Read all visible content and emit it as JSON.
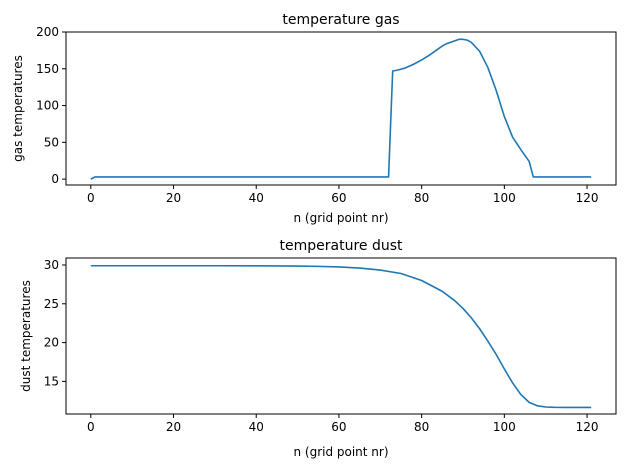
{
  "chart_data": [
    {
      "type": "line",
      "title": "temperature gas",
      "xlabel": "n (grid point nr)",
      "ylabel": "gas temperatures",
      "xlim": [
        -6,
        127
      ],
      "ylim": [
        -8,
        200
      ],
      "xticks": [
        0,
        20,
        40,
        60,
        80,
        100,
        120
      ],
      "yticks": [
        0,
        50,
        100,
        150,
        200
      ],
      "grid": false,
      "color": "#1f77b4",
      "series": [
        {
          "x": [
            0,
            1,
            2,
            10,
            20,
            40,
            60,
            70,
            72,
            73,
            74,
            76,
            78,
            80,
            82,
            84,
            85,
            86,
            88,
            89,
            90,
            91,
            92,
            94,
            96,
            98,
            100,
            102,
            104,
            106,
            107,
            108,
            110,
            115,
            121
          ],
          "y": [
            0,
            3,
            3,
            3,
            3,
            3,
            3,
            3,
            3,
            147,
            148,
            151,
            156,
            162,
            169,
            177,
            181,
            184,
            188,
            190,
            190,
            189,
            186,
            174,
            152,
            121,
            85,
            57,
            40,
            24,
            3,
            3,
            3,
            3,
            3
          ]
        }
      ]
    },
    {
      "type": "line",
      "title": "temperature dust",
      "xlabel": "n (grid point nr)",
      "ylabel": "dust temperatures",
      "xlim": [
        -6,
        127
      ],
      "ylim": [
        10.8,
        30.9
      ],
      "xticks": [
        0,
        20,
        40,
        60,
        80,
        100,
        120
      ],
      "yticks": [
        15,
        20,
        25,
        30
      ],
      "grid": false,
      "color": "#1f77b4",
      "series": [
        {
          "x": [
            0,
            10,
            20,
            30,
            40,
            50,
            55,
            60,
            65,
            70,
            75,
            80,
            85,
            88,
            90,
            92,
            94,
            96,
            98,
            100,
            102,
            104,
            106,
            108,
            110,
            112,
            115,
            118,
            121
          ],
          "y": [
            29.9,
            29.9,
            29.9,
            29.9,
            29.89,
            29.86,
            29.82,
            29.75,
            29.6,
            29.35,
            28.9,
            28.0,
            26.6,
            25.4,
            24.4,
            23.2,
            21.8,
            20.2,
            18.5,
            16.6,
            14.8,
            13.3,
            12.3,
            11.85,
            11.7,
            11.66,
            11.65,
            11.65,
            11.65
          ]
        }
      ]
    }
  ]
}
